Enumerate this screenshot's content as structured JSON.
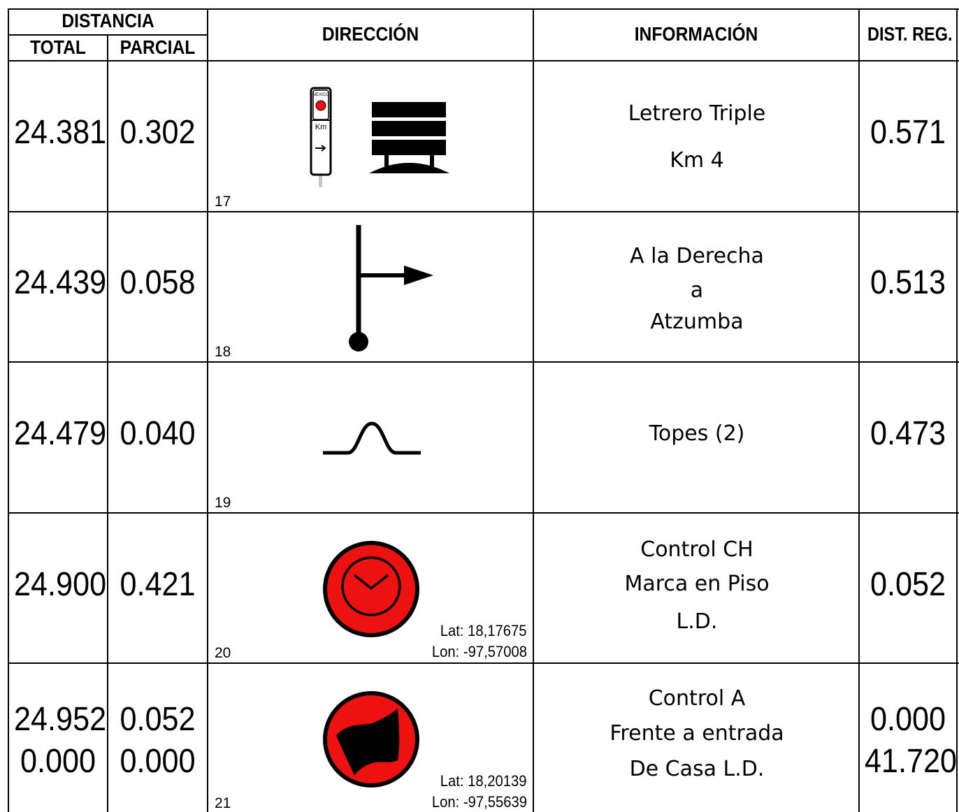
{
  "header": {
    "distancia": "DISTANCIA",
    "total": "TOTAL",
    "parcial": "PARCIAL",
    "direccion": "DIRECCIÓN",
    "informacion": "INFORMACIÓN",
    "dist_reg": "DIST. REG."
  },
  "rows": [
    {
      "total": "24.381",
      "parcial": "0.302",
      "step": "17",
      "icons": [
        "km-marker-post-icon",
        "triple-sign-icon"
      ],
      "sign_text": [
        "MEXICO",
        "Km"
      ],
      "info": [
        "Letrero Triple",
        "Km 4"
      ],
      "dist_reg": "0.571"
    },
    {
      "total": "24.439",
      "parcial": "0.058",
      "step": "18",
      "icons": [
        "turn-right-arrow-icon"
      ],
      "info": [
        "A la Derecha",
        "a",
        "Atzumba"
      ],
      "dist_reg": "0.513"
    },
    {
      "total": "24.479",
      "parcial": "0.040",
      "step": "19",
      "icons": [
        "speed-bump-icon"
      ],
      "info": [
        "Topes (2)"
      ],
      "dist_reg": "0.473"
    },
    {
      "total": "24.900",
      "parcial": "0.421",
      "step": "20",
      "icons": [
        "time-control-clock-icon"
      ],
      "lat": "Lat: 18,17675",
      "lon": "Lon: -97,57008",
      "info": [
        "Control CH",
        "Marca en Piso",
        "L.D."
      ],
      "dist_reg": "0.052"
    },
    {
      "total": "24.952",
      "total2": "0.000",
      "parcial": "0.052",
      "parcial2": "0.000",
      "step": "21",
      "icons": [
        "arrival-control-flag-icon"
      ],
      "lat": "Lat: 18,20139",
      "lon": "Lon: -97,55639",
      "info": [
        "Control A",
        "Frente a entrada",
        "De Casa L.D."
      ],
      "dist_reg": "0.000",
      "dist_reg2": "41.720"
    }
  ],
  "colors": {
    "control_red": "#ee1111",
    "ink": "#000000"
  }
}
